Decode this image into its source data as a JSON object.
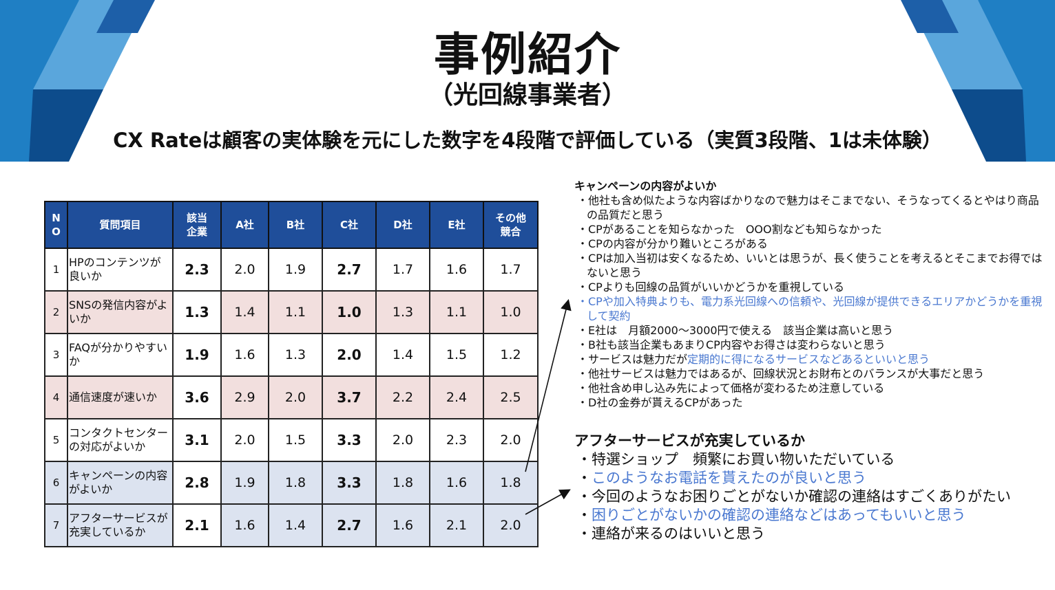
{
  "slide": {
    "title": "事例紹介",
    "subtitle": "（光回線事業者）",
    "headline": "CX Rateは顧客の実体験を元にした数字を4段階で評価している（実質3段階、1は未体験）",
    "colors": {
      "header_blue": "#1f4e9a",
      "pink_row": "#f2dfde",
      "blue_row": "#dce3f0",
      "highlight_text": "#4a78d0"
    }
  },
  "table": {
    "headers": [
      "N\nO",
      "質問項目",
      "該当\n企業",
      "A社",
      "B社",
      "C社",
      "D社",
      "E社",
      "その他\n競合"
    ],
    "rows": [
      {
        "no": "1",
        "q": "HPのコンテンツが良いか",
        "target": "2.3",
        "a": "2.0",
        "b": "1.9",
        "c": "2.7",
        "d": "1.7",
        "e": "1.6",
        "other": "1.7",
        "tint": "none"
      },
      {
        "no": "2",
        "q": "SNSの発信内容がよいか",
        "target": "1.3",
        "a": "1.4",
        "b": "1.1",
        "c": "1.0",
        "d": "1.3",
        "e": "1.1",
        "other": "1.0",
        "tint": "pink"
      },
      {
        "no": "3",
        "q": "FAQが分かりやすいか",
        "target": "1.9",
        "a": "1.6",
        "b": "1.3",
        "c": "2.0",
        "d": "1.4",
        "e": "1.5",
        "other": "1.2",
        "tint": "none"
      },
      {
        "no": "4",
        "q": "通信速度が速いか",
        "target": "3.6",
        "a": "2.9",
        "b": "2.0",
        "c": "3.7",
        "d": "2.2",
        "e": "2.4",
        "other": "2.5",
        "tint": "pink"
      },
      {
        "no": "5",
        "q": "コンタクトセンターの対応がよいか",
        "target": "3.1",
        "a": "2.0",
        "b": "1.5",
        "c": "3.3",
        "d": "2.0",
        "e": "2.3",
        "other": "2.0",
        "tint": "none"
      },
      {
        "no": "6",
        "q": "キャンペーンの内容がよいか",
        "target": "2.8",
        "a": "1.9",
        "b": "1.8",
        "c": "3.3",
        "d": "1.8",
        "e": "1.6",
        "other": "1.8",
        "tint": "blue"
      },
      {
        "no": "7",
        "q": "アフターサービスが充実しているか",
        "target": "2.1",
        "a": "1.6",
        "b": "1.4",
        "c": "2.7",
        "d": "1.6",
        "e": "2.1",
        "other": "2.0",
        "tint": "blue"
      }
    ]
  },
  "campaign": {
    "heading": "キャンペーンの内容がよいか",
    "items": [
      {
        "parts": [
          {
            "text": "・他社も含め似たような内容ばかりなので魅力はそこまでない、そうなってくるとやはり商品の品質だと思う"
          }
        ]
      },
      {
        "parts": [
          {
            "text": "・CPがあることを知らなかった　OOO割なども知らなかった"
          }
        ]
      },
      {
        "parts": [
          {
            "text": "・CPの内容が分かり難いところがある"
          }
        ]
      },
      {
        "parts": [
          {
            "text": "・CPは加入当初は安くなるため、いいとは思うが、長く使うことを考えるとそこまでお得ではないと思う"
          }
        ]
      },
      {
        "parts": [
          {
            "text": "・CPよりも回線の品質がいいかどうかを重視している"
          }
        ]
      },
      {
        "parts": [
          {
            "text": "・CPや加入特典よりも、電力系光回線への信頼や、光回線が提供できるエリアかどうかを重視して契約",
            "blue": true
          }
        ]
      },
      {
        "parts": [
          {
            "text": "・E社は　月額2000～3000円で使える　該当企業は高いと思う"
          }
        ]
      },
      {
        "parts": [
          {
            "text": "・B社も該当企業もあまりCP内容やお得さは変わらないと思う"
          }
        ]
      },
      {
        "parts": [
          {
            "text": "・サービスは魅力だが"
          },
          {
            "text": "定期的に得になるサービスなどあるといいと思う",
            "blue": true
          }
        ]
      },
      {
        "parts": [
          {
            "text": "・他社サービスは魅力ではあるが、回線状況とお財布とのバランスが大事だと思う"
          }
        ]
      },
      {
        "parts": [
          {
            "text": "・他社含め申し込み先によって価格が変わるため注意している"
          }
        ]
      },
      {
        "parts": [
          {
            "text": "・D社の金券が貰えるCPがあった"
          }
        ]
      }
    ]
  },
  "after_service": {
    "heading": "アフターサービスが充実しているか",
    "items": [
      {
        "parts": [
          {
            "text": "・特選ショップ　頻繁にお買い物いただいている"
          }
        ]
      },
      {
        "parts": [
          {
            "text": "・"
          },
          {
            "text": "このようなお電話を貰えたのが良いと思う",
            "blue": true
          }
        ]
      },
      {
        "parts": [
          {
            "text": "・今回のようなお困りごとがないか確認の連絡はすごくありがたい"
          }
        ]
      },
      {
        "parts": [
          {
            "text": "・"
          },
          {
            "text": "困りごとがないかの確認の連絡などはあってもいいと思う",
            "blue": true
          }
        ]
      },
      {
        "parts": [
          {
            "text": "・連絡が来るのはいいと思う"
          }
        ]
      }
    ]
  }
}
